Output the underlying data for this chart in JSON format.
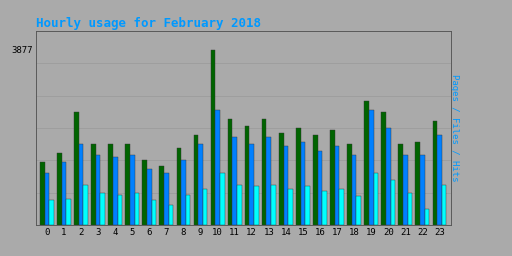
{
  "title": "Hourly usage for February 2018",
  "ylabel_right": "Pages / Files / Hits",
  "ytick_label": "3877",
  "hours": [
    0,
    1,
    2,
    3,
    4,
    5,
    6,
    7,
    8,
    9,
    10,
    11,
    12,
    13,
    14,
    15,
    16,
    17,
    18,
    19,
    20,
    21,
    22,
    23
  ],
  "pages": [
    1400,
    1600,
    2500,
    1800,
    1800,
    1800,
    1450,
    1300,
    1700,
    2000,
    3877,
    2350,
    2200,
    2350,
    2050,
    2150,
    2000,
    2100,
    1800,
    2750,
    2500,
    1800,
    1850,
    2300
  ],
  "files": [
    1150,
    1400,
    1800,
    1550,
    1500,
    1550,
    1250,
    1150,
    1450,
    1800,
    2550,
    1950,
    1800,
    1950,
    1750,
    1850,
    1650,
    1750,
    1550,
    2550,
    2150,
    1550,
    1550,
    2000
  ],
  "hits": [
    550,
    580,
    880,
    720,
    680,
    720,
    560,
    450,
    660,
    800,
    1150,
    900,
    860,
    900,
    810,
    860,
    760,
    800,
    650,
    1150,
    1000,
    710,
    370,
    900
  ],
  "color_pages": "#006400",
  "color_files": "#0080FF",
  "color_hits": "#00FFFF",
  "background_plot": "#AAAAAA",
  "background_fig": "#AAAAAA",
  "title_color": "#0099FF",
  "ylabel_color": "#0099FF",
  "grid_color": "#999999",
  "ylim_max": 4300,
  "bar_width": 0.27
}
